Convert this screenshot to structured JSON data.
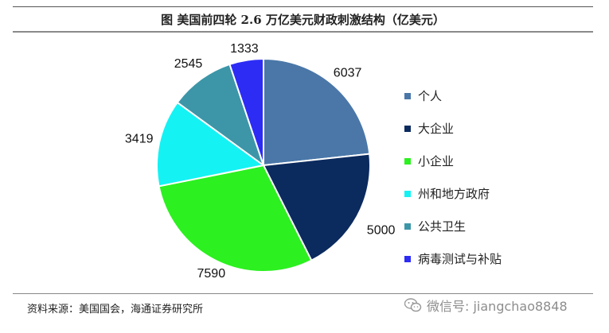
{
  "chart_data": {
    "type": "pie",
    "title": "图  美国前四轮 2.6 万亿美元财政刺激结构（亿美元）",
    "categories": [
      "个人",
      "大企业",
      "小企业",
      "州和地方政府",
      "公共卫生",
      "病毒测试与补贴"
    ],
    "values": [
      6037,
      5000,
      7590,
      3419,
      2545,
      1333
    ],
    "colors": [
      "#4a77a8",
      "#0b2a5e",
      "#2cf020",
      "#14f2f4",
      "#3c96a8",
      "#2d2cf5"
    ],
    "legend_position": "right"
  },
  "source_text": "资料来源：美国国会，海通证券研究所",
  "watermark_text": "微信号: jiangchao8848",
  "watermark_icon": "wechat-icon"
}
